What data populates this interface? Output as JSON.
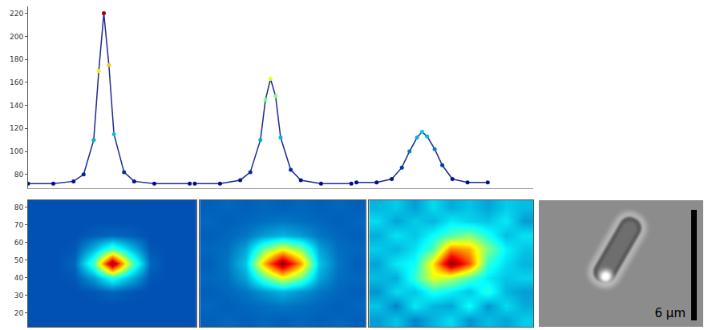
{
  "chart_data": [
    {
      "type": "line",
      "xlim": [
        0,
        100
      ],
      "ylim": [
        68,
        226
      ],
      "yticks": [
        80,
        100,
        120,
        140,
        160,
        180,
        200,
        220
      ],
      "tick_labels": "y",
      "grid": false,
      "series": [
        {
          "color": "#1c2a8f",
          "x": [
            0,
            5,
            9,
            11,
            13,
            14,
            15,
            16,
            17,
            19,
            21,
            25,
            32
          ],
          "values": [
            72,
            72,
            74,
            80,
            110,
            170,
            220,
            175,
            115,
            82,
            74,
            72,
            72
          ]
        },
        {
          "color": "#1c2a8f",
          "x": [
            33,
            38,
            42,
            44,
            46,
            47,
            48,
            49,
            50,
            52,
            54,
            58,
            64
          ],
          "values": [
            72,
            72,
            75,
            82,
            110,
            145,
            163,
            148,
            112,
            84,
            75,
            72,
            72
          ]
        },
        {
          "color": "#1c2a8f",
          "x": [
            65,
            69,
            72,
            74,
            75.5,
            77,
            78,
            79,
            80.5,
            82,
            84,
            87,
            91
          ],
          "values": [
            73,
            73,
            76,
            86,
            100,
            112,
            117,
            113,
            102,
            88,
            76,
            73,
            73
          ]
        }
      ]
    },
    {
      "type": "heatmap",
      "color": "Jet",
      "zlim": [
        0,
        100
      ],
      "xlim": [
        12,
        84
      ],
      "ylim": [
        12,
        84
      ],
      "yticks": [
        20,
        30,
        40,
        50,
        60,
        70,
        80
      ],
      "tick_labels": "y",
      "x": [
        16,
        24,
        32,
        40,
        48,
        56,
        64,
        72,
        80
      ],
      "y": [
        16,
        24,
        32,
        40,
        48,
        56,
        64,
        72,
        80
      ],
      "z": [
        [
          15,
          15,
          15,
          15,
          15,
          15,
          15,
          15,
          15
        ],
        [
          15,
          15,
          15,
          15,
          15,
          15,
          15,
          15,
          15
        ],
        [
          15,
          15,
          15,
          16,
          18,
          16,
          15,
          15,
          15
        ],
        [
          15,
          15,
          16,
          25,
          40,
          28,
          16,
          15,
          15
        ],
        [
          15,
          15,
          18,
          45,
          100,
          50,
          18,
          15,
          15
        ],
        [
          15,
          15,
          16,
          28,
          45,
          30,
          16,
          15,
          15
        ],
        [
          15,
          15,
          15,
          17,
          18,
          17,
          15,
          15,
          15
        ],
        [
          15,
          15,
          15,
          15,
          15,
          15,
          15,
          15,
          15
        ],
        [
          15,
          15,
          15,
          15,
          15,
          15,
          15,
          15,
          15
        ]
      ]
    },
    {
      "type": "heatmap",
      "color": "Jet",
      "zlim": [
        0,
        100
      ],
      "xlim": [
        12,
        84
      ],
      "ylim": [
        12,
        84
      ],
      "tick_labels": false,
      "x": [
        16,
        24,
        32,
        40,
        48,
        56,
        64,
        72,
        80
      ],
      "y": [
        16,
        24,
        32,
        40,
        48,
        56,
        64,
        72,
        80
      ],
      "z": [
        [
          17,
          18,
          17,
          18,
          17,
          18,
          17,
          18,
          17
        ],
        [
          18,
          17,
          18,
          19,
          20,
          19,
          18,
          17,
          18
        ],
        [
          17,
          18,
          20,
          24,
          28,
          24,
          20,
          18,
          17
        ],
        [
          18,
          19,
          26,
          45,
          60,
          48,
          26,
          19,
          18
        ],
        [
          17,
          20,
          30,
          70,
          100,
          72,
          30,
          20,
          17
        ],
        [
          18,
          19,
          26,
          48,
          62,
          50,
          26,
          19,
          18
        ],
        [
          17,
          18,
          20,
          25,
          28,
          25,
          20,
          18,
          17
        ],
        [
          18,
          17,
          18,
          19,
          20,
          19,
          18,
          17,
          18
        ],
        [
          17,
          18,
          17,
          18,
          17,
          18,
          17,
          18,
          17
        ]
      ]
    },
    {
      "type": "heatmap",
      "color": "Jet",
      "zlim": [
        0,
        100
      ],
      "xlim": [
        12,
        84
      ],
      "ylim": [
        12,
        84
      ],
      "tick_labels": false,
      "x": [
        16,
        24,
        32,
        40,
        48,
        56,
        64,
        72,
        80
      ],
      "y": [
        16,
        24,
        32,
        40,
        48,
        56,
        64,
        72,
        80
      ],
      "z": [
        [
          25,
          30,
          22,
          28,
          33,
          24,
          29,
          26,
          31
        ],
        [
          30,
          22,
          35,
          28,
          26,
          38,
          24,
          33,
          27
        ],
        [
          24,
          33,
          30,
          40,
          36,
          30,
          41,
          28,
          25
        ],
        [
          29,
          27,
          42,
          60,
          55,
          45,
          35,
          30,
          32
        ],
        [
          26,
          35,
          38,
          65,
          100,
          80,
          42,
          33,
          28
        ],
        [
          31,
          28,
          34,
          45,
          75,
          70,
          50,
          36,
          30
        ],
        [
          27,
          34,
          30,
          38,
          45,
          50,
          40,
          29,
          34
        ],
        [
          33,
          26,
          31,
          28,
          35,
          32,
          30,
          35,
          25
        ],
        [
          28,
          31,
          25,
          33,
          27,
          30,
          26,
          31,
          29
        ]
      ]
    }
  ],
  "micrograph": {
    "scale_bar": "6 μm"
  }
}
